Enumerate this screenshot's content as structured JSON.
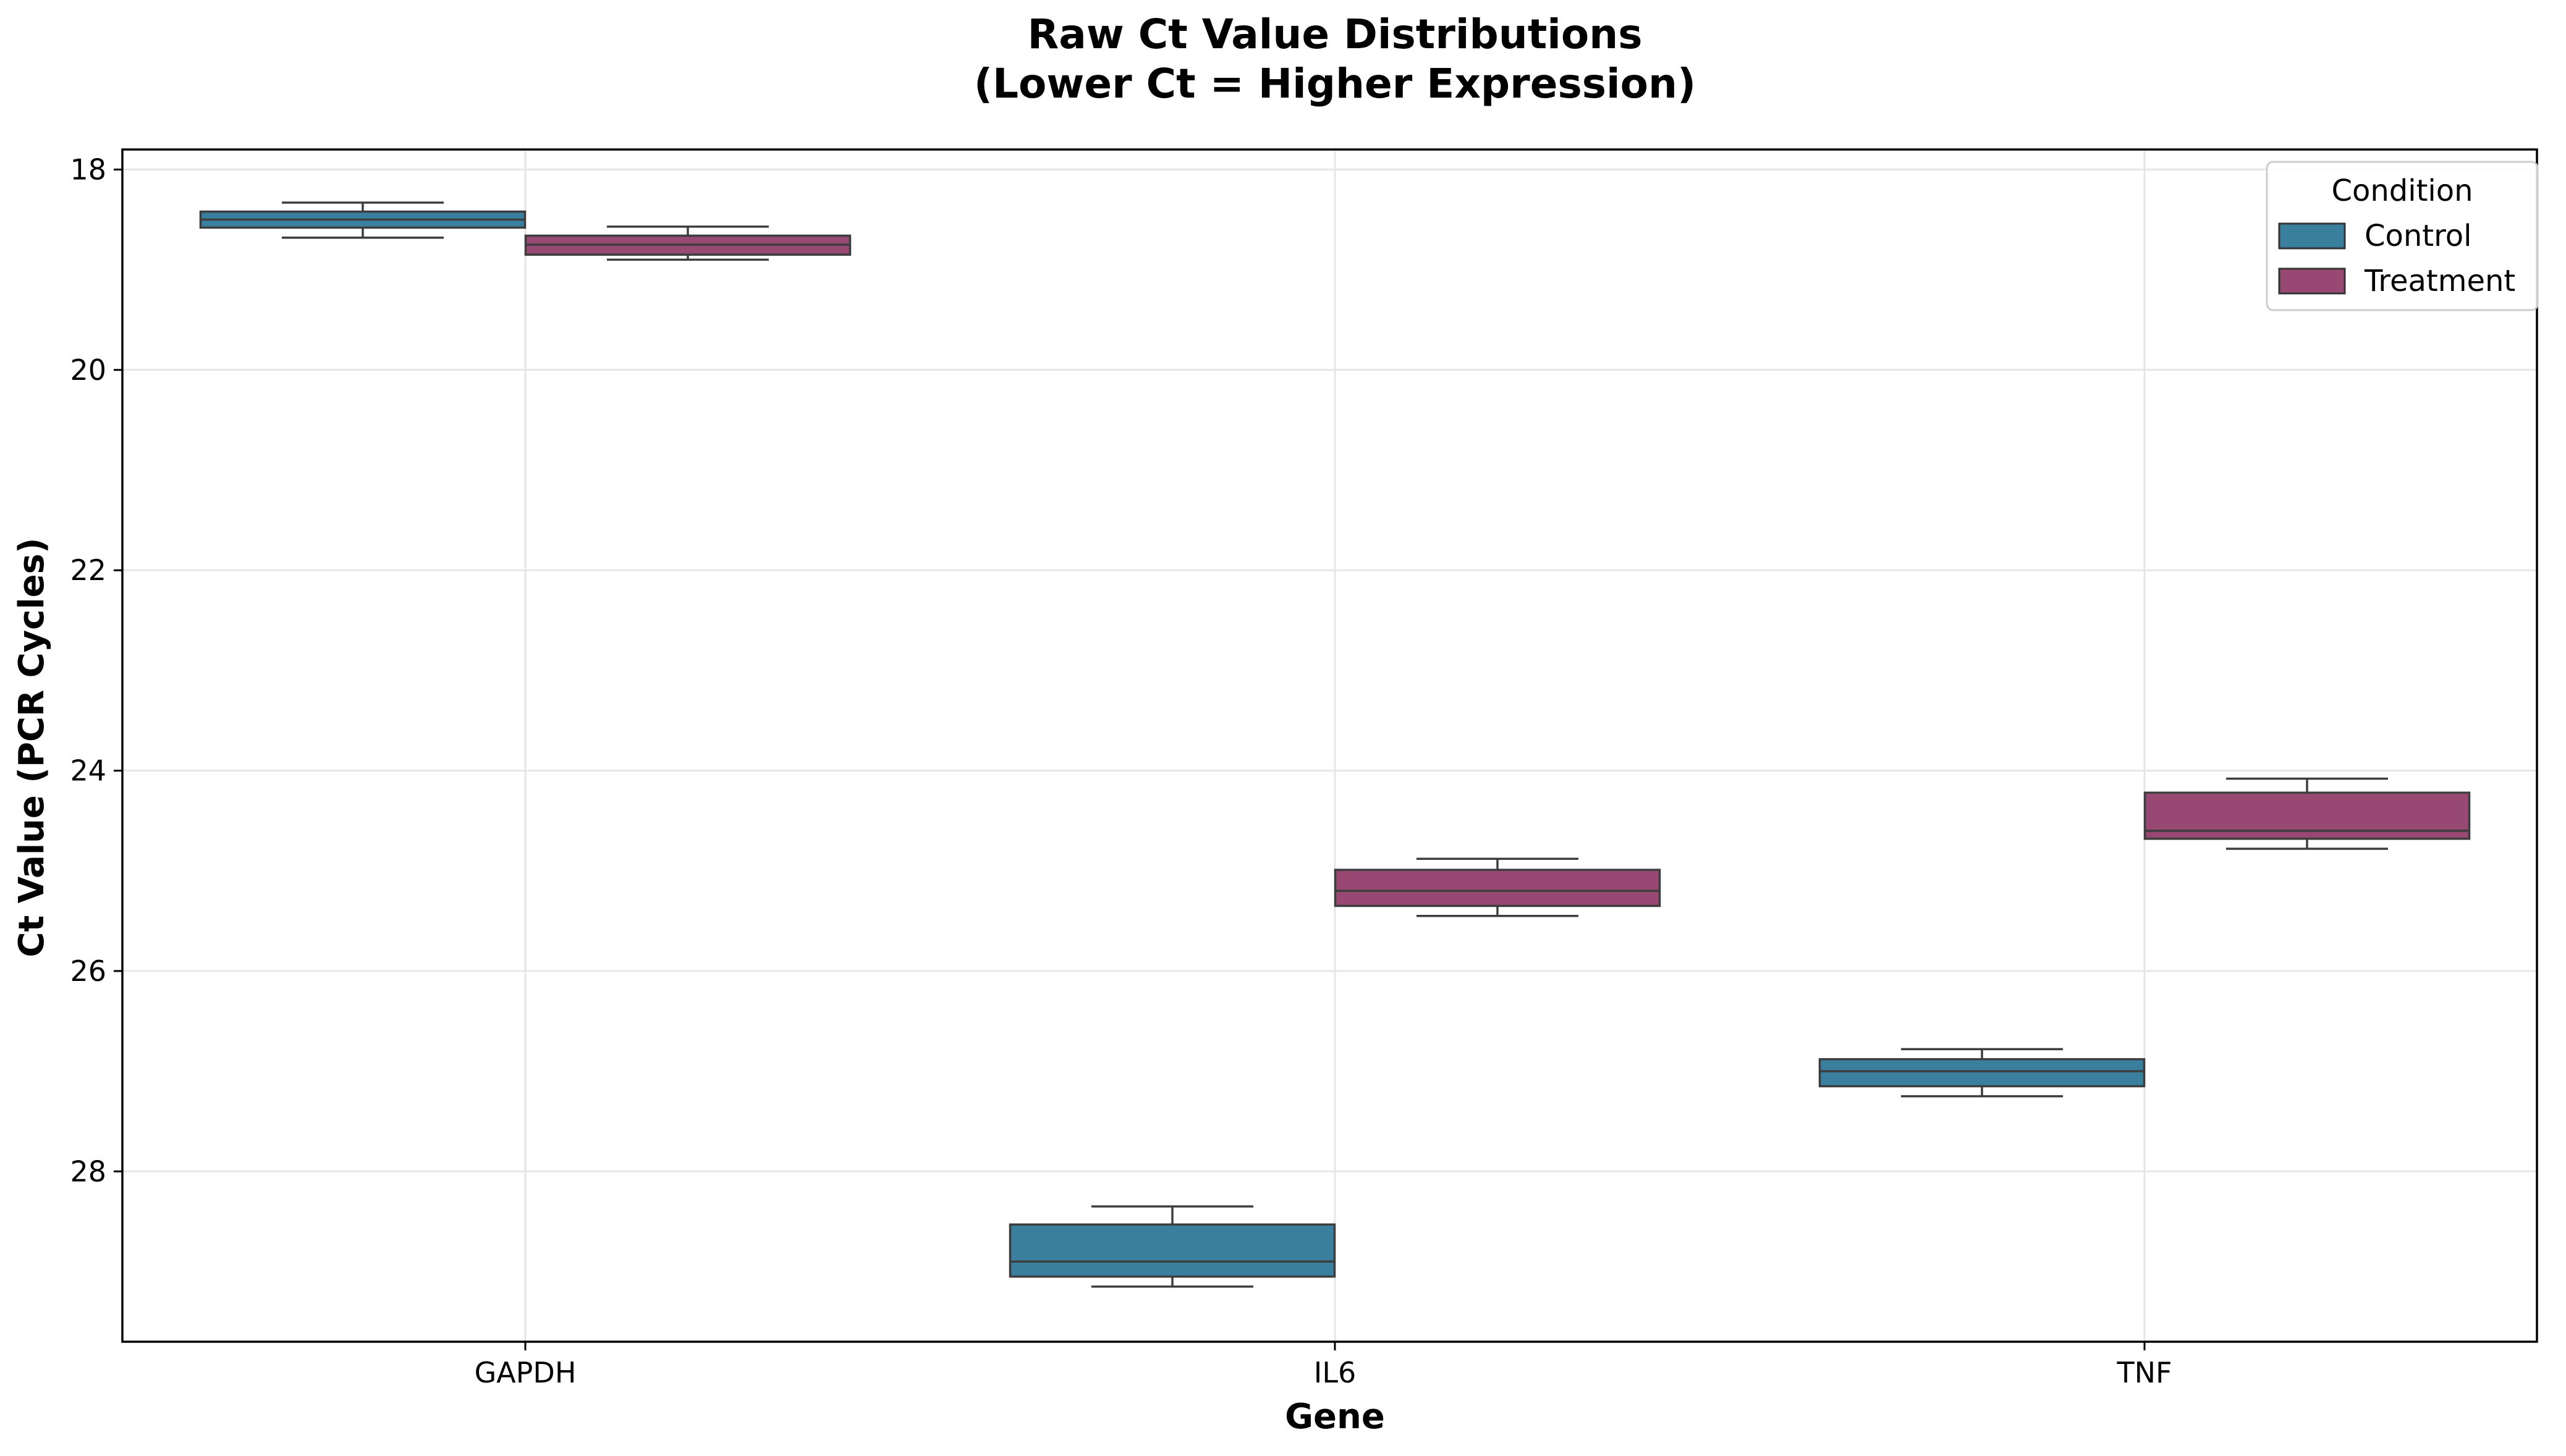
{
  "chart_data": {
    "type": "box",
    "title_lines": [
      "Raw Ct Value Distributions",
      "(Lower Ct = Higher Expression)"
    ],
    "xlabel": "Gene",
    "ylabel": "Ct Value (PCR Cycles)",
    "categories": [
      "GAPDH",
      "IL6",
      "TNF"
    ],
    "y_axis_inverted": true,
    "ylim": [
      17.8,
      29.7
    ],
    "yticks": [
      18,
      20,
      22,
      24,
      26,
      28
    ],
    "grid": true,
    "legend": {
      "title": "Condition",
      "placement": "top-right"
    },
    "series": [
      {
        "name": "Control",
        "color": "#3a7f9e",
        "boxes": [
          {
            "category": "GAPDH",
            "whisker_low": 18.33,
            "q1": 18.42,
            "median": 18.5,
            "q3": 18.58,
            "whisker_high": 18.68
          },
          {
            "category": "IL6",
            "whisker_low": 28.35,
            "q1": 28.53,
            "median": 28.9,
            "q3": 29.05,
            "whisker_high": 29.15
          },
          {
            "category": "TNF",
            "whisker_low": 26.78,
            "q1": 26.88,
            "median": 27.0,
            "q3": 27.15,
            "whisker_high": 27.25
          }
        ]
      },
      {
        "name": "Treatment",
        "color": "#974873",
        "boxes": [
          {
            "category": "GAPDH",
            "whisker_low": 18.57,
            "q1": 18.66,
            "median": 18.75,
            "q3": 18.85,
            "whisker_high": 18.9
          },
          {
            "category": "IL6",
            "whisker_low": 24.88,
            "q1": 24.99,
            "median": 25.2,
            "q3": 25.35,
            "whisker_high": 25.45
          },
          {
            "category": "TNF",
            "whisker_low": 24.08,
            "q1": 24.22,
            "median": 24.6,
            "q3": 24.68,
            "whisker_high": 24.78
          }
        ]
      }
    ]
  }
}
